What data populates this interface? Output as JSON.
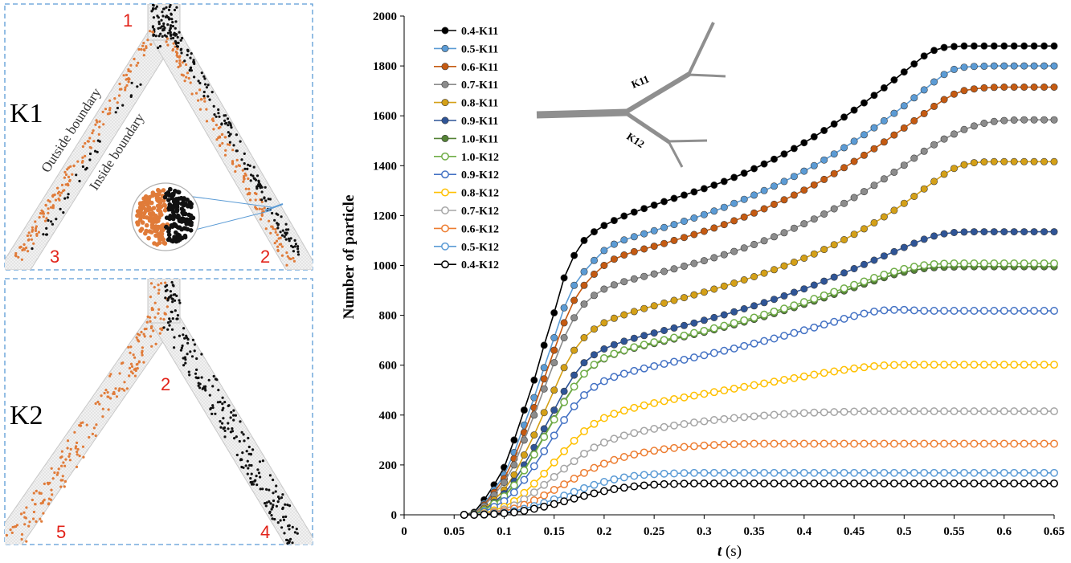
{
  "panels": {
    "k1": {
      "label": "K1",
      "outside_boundary": "Outside boundary",
      "inside_boundary": "Inside boundary",
      "outlets": [
        "1",
        "2",
        "3"
      ]
    },
    "k2": {
      "label": "K2",
      "outlets": [
        "2",
        "4",
        "5"
      ]
    }
  },
  "chart_data": {
    "type": "line",
    "title": "",
    "xlabel_italic": "t",
    "xlabel_unit": " (s)",
    "ylabel": "Number of particle",
    "xlim": [
      0,
      0.65
    ],
    "ylim": [
      0,
      2000
    ],
    "x_ticks": [
      0,
      0.05,
      0.1,
      0.15,
      0.2,
      0.25,
      0.3,
      0.35,
      0.4,
      0.45,
      0.5,
      0.55,
      0.6,
      0.65
    ],
    "x_tick_labels": [
      "0",
      "0.05",
      "0.1",
      "0.15",
      "0.2",
      "0.25",
      "0.3",
      "0.35",
      "0.4",
      "0.45",
      "0.5",
      "0.55",
      "0.6",
      "0.65"
    ],
    "y_ticks": [
      0,
      200,
      400,
      600,
      800,
      1000,
      1200,
      1400,
      1600,
      1800,
      2000
    ],
    "grid": false,
    "legend_position": "top-left",
    "x": [
      0.06,
      0.07,
      0.08,
      0.09,
      0.1,
      0.11,
      0.12,
      0.13,
      0.14,
      0.15,
      0.16,
      0.17,
      0.18,
      0.19,
      0.2,
      0.21,
      0.22,
      0.23,
      0.24,
      0.25,
      0.26,
      0.27,
      0.28,
      0.29,
      0.3,
      0.31,
      0.32,
      0.33,
      0.34,
      0.35,
      0.36,
      0.37,
      0.38,
      0.39,
      0.4,
      0.41,
      0.42,
      0.43,
      0.44,
      0.45,
      0.46,
      0.47,
      0.48,
      0.49,
      0.5,
      0.51,
      0.52,
      0.53,
      0.54,
      0.55,
      0.56,
      0.57,
      0.58,
      0.59,
      0.6,
      0.61,
      0.62,
      0.63,
      0.64,
      0.65
    ],
    "series": [
      {
        "name": "0.4-K11",
        "color": "#000000",
        "filled": true,
        "values": [
          0,
          10,
          60,
          120,
          190,
          300,
          420,
          540,
          680,
          810,
          950,
          1040,
          1100,
          1135,
          1160,
          1180,
          1198,
          1214,
          1228,
          1242,
          1256,
          1269,
          1282,
          1295,
          1308,
          1322,
          1337,
          1353,
          1370,
          1388,
          1407,
          1426,
          1447,
          1469,
          1492,
          1516,
          1541,
          1567,
          1595,
          1623,
          1652,
          1682,
          1712,
          1744,
          1776,
          1808,
          1840,
          1862,
          1874,
          1878,
          1880,
          1880,
          1880,
          1880,
          1880,
          1880,
          1880,
          1880,
          1880,
          1880
        ]
      },
      {
        "name": "0.5-K11",
        "color": "#5b9bd5",
        "filled": true,
        "values": [
          0,
          5,
          45,
          100,
          160,
          250,
          360,
          470,
          590,
          710,
          830,
          920,
          975,
          1020,
          1060,
          1085,
          1102,
          1115,
          1127,
          1139,
          1152,
          1164,
          1177,
          1190,
          1204,
          1218,
          1233,
          1249,
          1265,
          1282,
          1300,
          1318,
          1337,
          1357,
          1378,
          1400,
          1423,
          1447,
          1472,
          1498,
          1524,
          1552,
          1580,
          1610,
          1640,
          1672,
          1704,
          1736,
          1766,
          1786,
          1795,
          1798,
          1799,
          1800,
          1800,
          1800,
          1800,
          1800,
          1800,
          1800
        ]
      },
      {
        "name": "0.6-K11",
        "color": "#c55a11",
        "filled": true,
        "values": [
          0,
          4,
          40,
          90,
          145,
          225,
          330,
          430,
          545,
          660,
          770,
          860,
          920,
          965,
          1000,
          1025,
          1042,
          1055,
          1066,
          1077,
          1088,
          1100,
          1112,
          1124,
          1137,
          1150,
          1164,
          1179,
          1194,
          1210,
          1227,
          1245,
          1263,
          1282,
          1302,
          1323,
          1345,
          1368,
          1392,
          1417,
          1442,
          1468,
          1495,
          1523,
          1551,
          1580,
          1609,
          1638,
          1665,
          1687,
          1701,
          1708,
          1712,
          1714,
          1715,
          1715,
          1715,
          1715,
          1715,
          1715
        ]
      },
      {
        "name": "0.7-K11",
        "color": "#8c8c8c",
        "filled": true,
        "values": [
          0,
          3,
          35,
          80,
          130,
          200,
          300,
          400,
          505,
          610,
          710,
          790,
          845,
          880,
          905,
          922,
          935,
          946,
          956,
          966,
          976,
          986,
          997,
          1008,
          1019,
          1031,
          1043,
          1056,
          1070,
          1084,
          1099,
          1115,
          1131,
          1149,
          1167,
          1186,
          1206,
          1227,
          1249,
          1272,
          1296,
          1321,
          1347,
          1374,
          1402,
          1430,
          1458,
          1484,
          1507,
          1527,
          1545,
          1559,
          1570,
          1577,
          1581,
          1583,
          1584,
          1584,
          1584,
          1584
        ]
      },
      {
        "name": "0.8-K11",
        "color": "#d4a017",
        "filled": true,
        "values": [
          0,
          2,
          25,
          60,
          100,
          160,
          240,
          320,
          410,
          500,
          590,
          660,
          710,
          745,
          770,
          788,
          802,
          815,
          827,
          838,
          849,
          860,
          871,
          882,
          893,
          905,
          917,
          929,
          942,
          955,
          969,
          983,
          998,
          1013,
          1029,
          1046,
          1064,
          1083,
          1103,
          1125,
          1147,
          1171,
          1195,
          1221,
          1249,
          1277,
          1307,
          1337,
          1366,
          1389,
          1404,
          1412,
          1415,
          1416,
          1416,
          1416,
          1416,
          1416,
          1416,
          1416
        ]
      },
      {
        "name": "0.9-K11",
        "color": "#2f5597",
        "filled": true,
        "values": [
          0,
          2,
          20,
          50,
          85,
          135,
          200,
          270,
          345,
          420,
          495,
          560,
          610,
          642,
          665,
          682,
          696,
          708,
          719,
          729,
          739,
          749,
          759,
          769,
          780,
          791,
          802,
          814,
          826,
          838,
          851,
          864,
          878,
          892,
          906,
          921,
          937,
          953,
          970,
          987,
          1004,
          1021,
          1038,
          1055,
          1072,
          1089,
          1105,
          1118,
          1127,
          1132,
          1134,
          1135,
          1135,
          1135,
          1135,
          1135,
          1135,
          1135,
          1135,
          1135
        ]
      },
      {
        "name": "1.0-K11",
        "color": "#548235",
        "filled": true,
        "values": [
          0,
          2,
          18,
          45,
          75,
          120,
          180,
          245,
          315,
          385,
          455,
          515,
          565,
          600,
          625,
          643,
          657,
          668,
          678,
          687,
          696,
          705,
          714,
          723,
          732,
          742,
          752,
          762,
          773,
          784,
          795,
          807,
          819,
          831,
          844,
          857,
          870,
          884,
          898,
          911,
          925,
          938,
          951,
          963,
          973,
          981,
          987,
          991,
          993,
          994,
          995,
          995,
          995,
          995,
          995,
          995,
          995,
          995,
          995,
          995
        ]
      },
      {
        "name": "1.0-K12",
        "color": "#70ad47",
        "filled": false,
        "values": [
          0,
          2,
          18,
          44,
          74,
          118,
          178,
          242,
          312,
          382,
          452,
          514,
          566,
          602,
          628,
          646,
          660,
          672,
          682,
          692,
          701,
          710,
          719,
          729,
          738,
          748,
          758,
          769,
          780,
          791,
          803,
          815,
          827,
          840,
          853,
          866,
          880,
          894,
          908,
          922,
          936,
          950,
          963,
          975,
          986,
          995,
          1001,
          1005,
          1007,
          1008,
          1008,
          1008,
          1008,
          1008,
          1008,
          1008,
          1008,
          1008,
          1008,
          1008
        ]
      },
      {
        "name": "0.9-K12",
        "color": "#4472c4",
        "filled": false,
        "values": [
          0,
          1,
          12,
          32,
          55,
          90,
          140,
          195,
          255,
          318,
          380,
          435,
          480,
          513,
          536,
          553,
          566,
          577,
          587,
          596,
          605,
          614,
          622,
          631,
          640,
          649,
          658,
          667,
          677,
          687,
          697,
          707,
          718,
          729,
          740,
          751,
          763,
          774,
          786,
          797,
          807,
          815,
          820,
          822,
          822,
          820,
          818,
          818,
          818,
          818,
          818,
          818,
          818,
          818,
          818,
          818,
          818,
          818,
          818,
          818
        ]
      },
      {
        "name": "0.8-K12",
        "color": "#ffc000",
        "filled": false,
        "values": [
          0,
          0,
          6,
          18,
          32,
          55,
          88,
          125,
          165,
          210,
          255,
          297,
          335,
          365,
          388,
          405,
          418,
          429,
          439,
          448,
          456,
          464,
          471,
          478,
          485,
          492,
          499,
          506,
          513,
          520,
          527,
          534,
          541,
          548,
          555,
          562,
          569,
          575,
          581,
          587,
          592,
          596,
          599,
          601,
          602,
          602,
          602,
          602,
          602,
          602,
          602,
          602,
          602,
          602,
          602,
          602,
          602,
          602,
          602,
          602
        ]
      },
      {
        "name": "0.7-K12",
        "color": "#a5a5a5",
        "filled": false,
        "values": [
          0,
          0,
          4,
          12,
          22,
          38,
          62,
          90,
          120,
          152,
          185,
          215,
          245,
          270,
          290,
          305,
          318,
          328,
          337,
          345,
          352,
          358,
          364,
          370,
          375,
          380,
          384,
          388,
          392,
          395,
          398,
          401,
          404,
          406,
          408,
          410,
          411,
          412,
          413,
          414,
          415,
          415,
          415,
          415,
          415,
          415,
          415,
          415,
          415,
          415,
          415,
          415,
          415,
          415,
          415,
          415,
          415,
          415,
          415,
          415
        ]
      },
      {
        "name": "0.6-K12",
        "color": "#ed7d31",
        "filled": false,
        "values": [
          0,
          0,
          3,
          8,
          15,
          25,
          40,
          58,
          78,
          100,
          122,
          145,
          168,
          188,
          205,
          220,
          232,
          242,
          250,
          257,
          263,
          268,
          272,
          275,
          278,
          280,
          282,
          283,
          284,
          285,
          285,
          285,
          285,
          285,
          285,
          285,
          285,
          285,
          285,
          285,
          285,
          285,
          285,
          285,
          285,
          285,
          285,
          285,
          285,
          285,
          285,
          285,
          285,
          285,
          285,
          285,
          285,
          285,
          285,
          285
        ]
      },
      {
        "name": "0.5-K12",
        "color": "#5b9bd5",
        "filled": false,
        "values": [
          0,
          0,
          2,
          5,
          9,
          15,
          24,
          35,
          48,
          62,
          77,
          92,
          107,
          120,
          132,
          142,
          150,
          156,
          160,
          163,
          165,
          166,
          167,
          168,
          168,
          168,
          168,
          168,
          168,
          168,
          168,
          168,
          168,
          168,
          168,
          168,
          168,
          168,
          168,
          168,
          168,
          168,
          168,
          168,
          168,
          168,
          168,
          168,
          168,
          168,
          168,
          168,
          168,
          168,
          168,
          168,
          168,
          168,
          168,
          168
        ]
      },
      {
        "name": "0.4-K12",
        "color": "#000000",
        "filled": false,
        "values": [
          0,
          0,
          1,
          3,
          6,
          10,
          16,
          24,
          33,
          43,
          54,
          65,
          76,
          86,
          95,
          103,
          109,
          114,
          118,
          121,
          123,
          124,
          125,
          126,
          126,
          126,
          126,
          126,
          126,
          126,
          126,
          126,
          126,
          126,
          126,
          126,
          126,
          126,
          126,
          126,
          126,
          126,
          126,
          126,
          126,
          126,
          126,
          126,
          126,
          126,
          126,
          126,
          126,
          126,
          126,
          126,
          126,
          126,
          126,
          126
        ]
      }
    ],
    "inset": {
      "labels": [
        "K11",
        "K12"
      ]
    }
  }
}
